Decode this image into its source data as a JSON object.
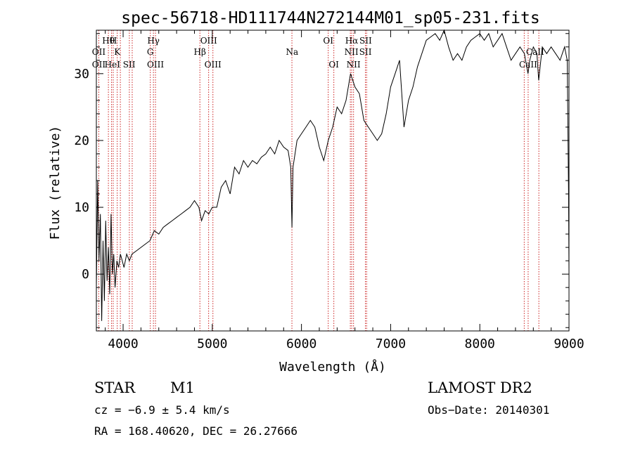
{
  "chart_data": {
    "type": "line",
    "title": "spec-56718-HD111744N272144M01_sp05-231.fits",
    "xlabel": "Wavelength (Å)",
    "ylabel": "Flux (relative)",
    "xlim": [
      3700,
      9000
    ],
    "ylim": [
      -8.5,
      36.5
    ],
    "xticks": [
      4000,
      5000,
      6000,
      7000,
      8000,
      9000
    ],
    "yticks": [
      0,
      10,
      20,
      30
    ],
    "xtick_labels": [
      "4000",
      "5000",
      "6000",
      "7000",
      "8000",
      "9000"
    ],
    "ytick_labels": [
      "0",
      "10",
      "20",
      "30"
    ],
    "grid": false,
    "series": [
      {
        "values_xy": [
          [
            3700,
            -2
          ],
          [
            3715,
            14
          ],
          [
            3730,
            2
          ],
          [
            3745,
            9
          ],
          [
            3760,
            -7
          ],
          [
            3775,
            5
          ],
          [
            3790,
            -4
          ],
          [
            3805,
            8
          ],
          [
            3820,
            -1
          ],
          [
            3835,
            4
          ],
          [
            3850,
            -3
          ],
          [
            3865,
            9
          ],
          [
            3880,
            0
          ],
          [
            3895,
            3
          ],
          [
            3910,
            -2
          ],
          [
            3930,
            2
          ],
          [
            3950,
            1
          ],
          [
            3970,
            3
          ],
          [
            3990,
            2
          ],
          [
            4010,
            1
          ],
          [
            4040,
            3
          ],
          [
            4070,
            2
          ],
          [
            4100,
            3
          ],
          [
            4150,
            3.5
          ],
          [
            4200,
            4
          ],
          [
            4250,
            4.5
          ],
          [
            4300,
            5
          ],
          [
            4350,
            6.5
          ],
          [
            4400,
            6
          ],
          [
            4450,
            7
          ],
          [
            4500,
            7.5
          ],
          [
            4550,
            8
          ],
          [
            4600,
            8.5
          ],
          [
            4650,
            9
          ],
          [
            4700,
            9.5
          ],
          [
            4750,
            10
          ],
          [
            4800,
            11
          ],
          [
            4850,
            10
          ],
          [
            4880,
            8
          ],
          [
            4920,
            9.5
          ],
          [
            4960,
            9
          ],
          [
            5000,
            10
          ],
          [
            5050,
            10
          ],
          [
            5100,
            13
          ],
          [
            5150,
            14
          ],
          [
            5200,
            12
          ],
          [
            5250,
            16
          ],
          [
            5300,
            15
          ],
          [
            5350,
            17
          ],
          [
            5400,
            16
          ],
          [
            5450,
            17
          ],
          [
            5500,
            16.5
          ],
          [
            5550,
            17.5
          ],
          [
            5600,
            18
          ],
          [
            5650,
            19
          ],
          [
            5700,
            18
          ],
          [
            5750,
            20
          ],
          [
            5800,
            19
          ],
          [
            5850,
            18.5
          ],
          [
            5880,
            16
          ],
          [
            5893,
            7
          ],
          [
            5905,
            16
          ],
          [
            5950,
            20
          ],
          [
            6000,
            21
          ],
          [
            6050,
            22
          ],
          [
            6100,
            23
          ],
          [
            6150,
            22
          ],
          [
            6200,
            19
          ],
          [
            6250,
            17
          ],
          [
            6300,
            20
          ],
          [
            6350,
            22
          ],
          [
            6400,
            25
          ],
          [
            6450,
            24
          ],
          [
            6500,
            26
          ],
          [
            6550,
            30
          ],
          [
            6600,
            28
          ],
          [
            6650,
            27
          ],
          [
            6700,
            23
          ],
          [
            6750,
            22
          ],
          [
            6800,
            21
          ],
          [
            6850,
            20
          ],
          [
            6900,
            21
          ],
          [
            6950,
            24
          ],
          [
            7000,
            28
          ],
          [
            7050,
            30
          ],
          [
            7100,
            32
          ],
          [
            7150,
            22
          ],
          [
            7200,
            26
          ],
          [
            7250,
            28
          ],
          [
            7300,
            31
          ],
          [
            7350,
            33
          ],
          [
            7400,
            35
          ],
          [
            7450,
            35.5
          ],
          [
            7500,
            36
          ],
          [
            7550,
            35
          ],
          [
            7600,
            37
          ],
          [
            7650,
            34
          ],
          [
            7700,
            32
          ],
          [
            7750,
            33
          ],
          [
            7800,
            32
          ],
          [
            7850,
            34
          ],
          [
            7900,
            35
          ],
          [
            7950,
            35.5
          ],
          [
            8000,
            36
          ],
          [
            8050,
            35
          ],
          [
            8100,
            36
          ],
          [
            8150,
            34
          ],
          [
            8200,
            35
          ],
          [
            8250,
            36
          ],
          [
            8300,
            34
          ],
          [
            8350,
            32
          ],
          [
            8400,
            33
          ],
          [
            8450,
            34
          ],
          [
            8500,
            33
          ],
          [
            8540,
            30
          ],
          [
            8560,
            32
          ],
          [
            8600,
            34
          ],
          [
            8640,
            33
          ],
          [
            8660,
            29
          ],
          [
            8700,
            34
          ],
          [
            8750,
            33
          ],
          [
            8800,
            34
          ],
          [
            8850,
            33
          ],
          [
            8900,
            32
          ],
          [
            8950,
            34
          ],
          [
            8980,
            32
          ],
          [
            8995,
            12
          ],
          [
            9000,
            0
          ]
        ]
      }
    ],
    "line_ids": [
      {
        "wl": 3835,
        "row": 0,
        "label": "Hθ"
      },
      {
        "wl": 3890,
        "row": 0,
        "label": "H"
      },
      {
        "wl": 4340,
        "row": 0,
        "label": "Hγ"
      },
      {
        "wl": 4960,
        "row": 0,
        "label": "OIII"
      },
      {
        "wl": 6300,
        "row": 0,
        "label": "OI"
      },
      {
        "wl": 6563,
        "row": 0,
        "label": "Hα"
      },
      {
        "wl": 6720,
        "row": 0,
        "label": "SII"
      },
      {
        "wl": 3727,
        "row": 1,
        "label": "OII"
      },
      {
        "wl": 3935,
        "row": 1,
        "label": "K"
      },
      {
        "wl": 4305,
        "row": 1,
        "label": "G"
      },
      {
        "wl": 4861,
        "row": 1,
        "label": "Hβ"
      },
      {
        "wl": 5895,
        "row": 1,
        "label": "Na"
      },
      {
        "wl": 6560,
        "row": 1,
        "label": "NII"
      },
      {
        "wl": 6718,
        "row": 1,
        "label": "SII"
      },
      {
        "wl": 8620,
        "row": 1,
        "label": "CaII"
      },
      {
        "wl": 3727,
        "row": 2,
        "label": "OII"
      },
      {
        "wl": 3880,
        "row": 2,
        "label": "HeI"
      },
      {
        "wl": 4068,
        "row": 2,
        "label": "SII"
      },
      {
        "wl": 4363,
        "row": 2,
        "label": "OIII"
      },
      {
        "wl": 5007,
        "row": 2,
        "label": "OIII"
      },
      {
        "wl": 6363,
        "row": 2,
        "label": "OI"
      },
      {
        "wl": 6584,
        "row": 2,
        "label": "NII"
      },
      {
        "wl": 8542,
        "row": 2,
        "label": "CaII"
      }
    ],
    "line_markers": [
      3727,
      3835,
      3870,
      3889,
      3934,
      3969,
      4070,
      4102,
      4305,
      4340,
      4363,
      4861,
      4959,
      5007,
      5893,
      6300,
      6363,
      6548,
      6563,
      6584,
      6717,
      6731,
      8498,
      8542,
      8662
    ],
    "marker_color": "#cc2222"
  },
  "info": {
    "object_type": "STAR",
    "subclass": "M1",
    "survey": "LAMOST DR2",
    "cz": "cz = −6.9 ± 5.4 km/s",
    "obs_date": "Obs−Date: 20140301",
    "coords": "RA = 168.40620, DEC =  26.27666"
  }
}
